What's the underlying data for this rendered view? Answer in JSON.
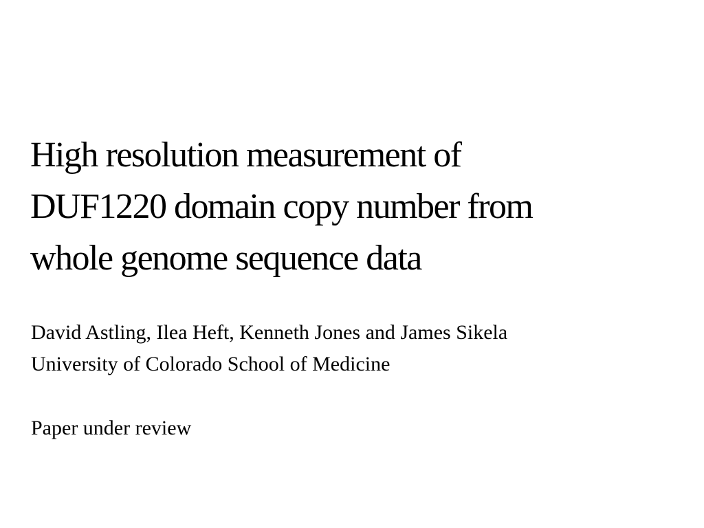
{
  "slide": {
    "title_lines": [
      "High resolution measurement of",
      "DUF1220 domain copy number from",
      "whole genome sequence data"
    ],
    "authors": "David Astling, Ilea Heft, Kenneth Jones and James Sikela",
    "affiliation": "University of Colorado School of Medicine",
    "status": "Paper under review",
    "background_color": "#ffffff",
    "text_color": "#000000"
  }
}
